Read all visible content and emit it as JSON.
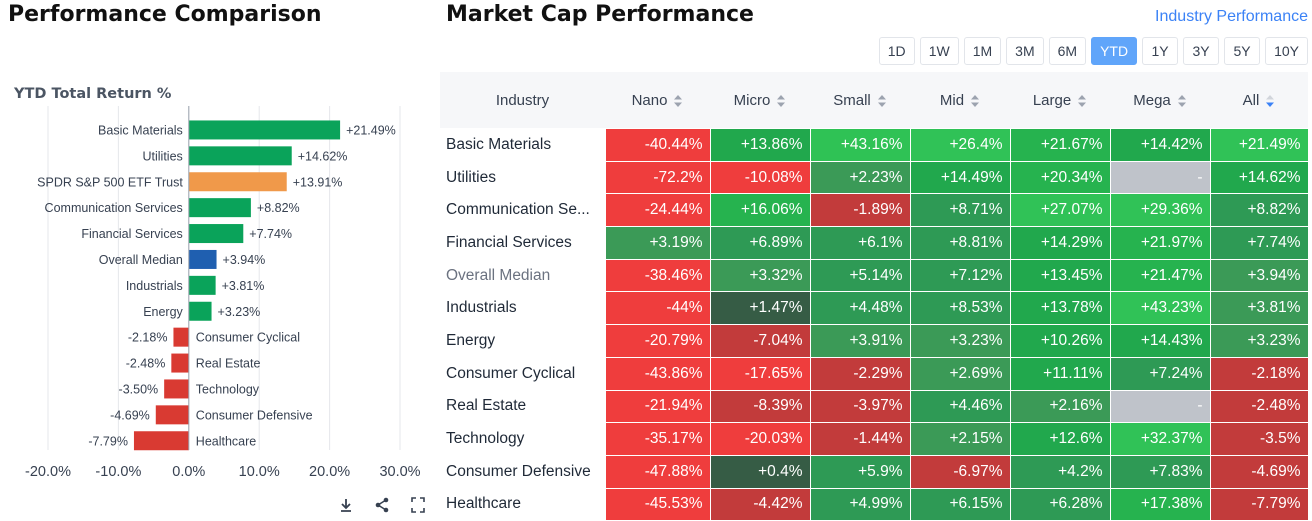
{
  "left": {
    "title": "Performance Comparison",
    "chart_subtitle": "YTD Total Return %",
    "tools": [
      "download-icon",
      "share-icon",
      "fullscreen-icon"
    ]
  },
  "chart_data": {
    "type": "bar",
    "orientation": "horizontal",
    "title": "YTD Total Return %",
    "categories": [
      "Basic Materials",
      "Utilities",
      "SPDR S&P 500 ETF Trust",
      "Communication Services",
      "Financial Services",
      "Overall Median",
      "Industrials",
      "Energy",
      "Consumer Cyclical",
      "Real Estate",
      "Technology",
      "Consumer Defensive",
      "Healthcare"
    ],
    "values": [
      21.49,
      14.62,
      13.91,
      8.82,
      7.74,
      3.94,
      3.81,
      3.23,
      -2.18,
      -2.48,
      -3.5,
      -4.69,
      -7.79
    ],
    "labels": [
      "+21.49%",
      "+14.62%",
      "+13.91%",
      "+8.82%",
      "+7.74%",
      "+3.94%",
      "+3.81%",
      "+3.23%",
      "-2.18%",
      "-2.48%",
      "-3.50%",
      "-4.69%",
      "-7.79%"
    ],
    "colors": [
      "#0aa35a",
      "#0aa35a",
      "#f0994a",
      "#0aa35a",
      "#0aa35a",
      "#1f5fb0",
      "#0aa35a",
      "#0aa35a",
      "#d93a32",
      "#d93a32",
      "#d93a32",
      "#d93a32",
      "#d93a32"
    ],
    "xlim": [
      -20,
      30
    ],
    "xticks": [
      -20,
      -10,
      0,
      10,
      20,
      30
    ],
    "xtick_labels": [
      "-20.0%",
      "-10.0%",
      "0.0%",
      "10.0%",
      "20.0%",
      "30.0%"
    ],
    "grid": true
  },
  "right": {
    "title": "Market Cap Performance",
    "link_label": "Industry Performance",
    "periods": [
      "1D",
      "1W",
      "1M",
      "3M",
      "6M",
      "YTD",
      "1Y",
      "3Y",
      "5Y",
      "10Y"
    ],
    "active_period": "YTD",
    "columns": [
      "Industry",
      "Nano",
      "Micro",
      "Small",
      "Mid",
      "Large",
      "Mega",
      "All"
    ],
    "sorted_column": "All",
    "rows": [
      {
        "industry": "Basic Materials",
        "cells": [
          {
            "text": "-40.44%",
            "bg": "#ef3d3d"
          },
          {
            "text": "+13.86%",
            "bg": "#21a84d"
          },
          {
            "text": "+43.16%",
            "bg": "#2fc255"
          },
          {
            "text": "+26.4%",
            "bg": "#30c257"
          },
          {
            "text": "+21.67%",
            "bg": "#26b34f"
          },
          {
            "text": "+14.42%",
            "bg": "#21a84d"
          },
          {
            "text": "+21.49%",
            "bg": "#30c257"
          }
        ]
      },
      {
        "industry": "Utilities",
        "cells": [
          {
            "text": "-72.2%",
            "bg": "#ef3d3d"
          },
          {
            "text": "-10.08%",
            "bg": "#ef3d3d"
          },
          {
            "text": "+2.23%",
            "bg": "#3b9a57"
          },
          {
            "text": "+14.49%",
            "bg": "#21a84d"
          },
          {
            "text": "+20.34%",
            "bg": "#26b34f"
          },
          {
            "text": "-",
            "bg": "#bfc3ca"
          },
          {
            "text": "+14.62%",
            "bg": "#21a84d"
          }
        ]
      },
      {
        "industry": "Communication Services",
        "display": "Communication Se...",
        "cells": [
          {
            "text": "-24.44%",
            "bg": "#ef3d3d"
          },
          {
            "text": "+16.06%",
            "bg": "#26b34f"
          },
          {
            "text": "-1.89%",
            "bg": "#c23b3b"
          },
          {
            "text": "+8.71%",
            "bg": "#2e9a55"
          },
          {
            "text": "+27.07%",
            "bg": "#30c257"
          },
          {
            "text": "+29.36%",
            "bg": "#30c257"
          },
          {
            "text": "+8.82%",
            "bg": "#2e9a55"
          }
        ]
      },
      {
        "industry": "Financial Services",
        "cells": [
          {
            "text": "+3.19%",
            "bg": "#3b9a57"
          },
          {
            "text": "+6.89%",
            "bg": "#2e9a55"
          },
          {
            "text": "+6.1%",
            "bg": "#2e9a55"
          },
          {
            "text": "+8.81%",
            "bg": "#2e9a55"
          },
          {
            "text": "+14.29%",
            "bg": "#21a84d"
          },
          {
            "text": "+21.97%",
            "bg": "#26b34f"
          },
          {
            "text": "+7.74%",
            "bg": "#2e9a55"
          }
        ]
      },
      {
        "industry": "Overall Median",
        "median": true,
        "cells": [
          {
            "text": "-38.46%",
            "bg": "#ef3d3d"
          },
          {
            "text": "+3.32%",
            "bg": "#3b9a57"
          },
          {
            "text": "+5.14%",
            "bg": "#2e9a55"
          },
          {
            "text": "+7.12%",
            "bg": "#2e9a55"
          },
          {
            "text": "+13.45%",
            "bg": "#21a84d"
          },
          {
            "text": "+21.47%",
            "bg": "#26b34f"
          },
          {
            "text": "+3.94%",
            "bg": "#3b9a57"
          }
        ]
      },
      {
        "industry": "Industrials",
        "cells": [
          {
            "text": "-44%",
            "bg": "#ef3d3d"
          },
          {
            "text": "+1.47%",
            "bg": "#365c45"
          },
          {
            "text": "+4.48%",
            "bg": "#2e9a55"
          },
          {
            "text": "+8.53%",
            "bg": "#2e9a55"
          },
          {
            "text": "+13.78%",
            "bg": "#21a84d"
          },
          {
            "text": "+43.23%",
            "bg": "#30c257"
          },
          {
            "text": "+3.81%",
            "bg": "#3b9a57"
          }
        ]
      },
      {
        "industry": "Energy",
        "cells": [
          {
            "text": "-20.79%",
            "bg": "#ef3d3d"
          },
          {
            "text": "-7.04%",
            "bg": "#c23b3b"
          },
          {
            "text": "+3.91%",
            "bg": "#3b9a57"
          },
          {
            "text": "+3.23%",
            "bg": "#3b9a57"
          },
          {
            "text": "+10.26%",
            "bg": "#21a84d"
          },
          {
            "text": "+14.43%",
            "bg": "#21a84d"
          },
          {
            "text": "+3.23%",
            "bg": "#3b9a57"
          }
        ]
      },
      {
        "industry": "Consumer Cyclical",
        "cells": [
          {
            "text": "-43.86%",
            "bg": "#ef3d3d"
          },
          {
            "text": "-17.65%",
            "bg": "#ef3d3d"
          },
          {
            "text": "-2.29%",
            "bg": "#c23b3b"
          },
          {
            "text": "+2.69%",
            "bg": "#3b9a57"
          },
          {
            "text": "+11.11%",
            "bg": "#21a84d"
          },
          {
            "text": "+7.24%",
            "bg": "#2e9a55"
          },
          {
            "text": "-2.18%",
            "bg": "#c23b3b"
          }
        ]
      },
      {
        "industry": "Real Estate",
        "cells": [
          {
            "text": "-21.94%",
            "bg": "#ef3d3d"
          },
          {
            "text": "-8.39%",
            "bg": "#c23b3b"
          },
          {
            "text": "-3.97%",
            "bg": "#c23b3b"
          },
          {
            "text": "+4.46%",
            "bg": "#2e9a55"
          },
          {
            "text": "+2.16%",
            "bg": "#3b9a57"
          },
          {
            "text": "-",
            "bg": "#bfc3ca"
          },
          {
            "text": "-2.48%",
            "bg": "#c23b3b"
          }
        ]
      },
      {
        "industry": "Technology",
        "cells": [
          {
            "text": "-35.17%",
            "bg": "#ef3d3d"
          },
          {
            "text": "-20.03%",
            "bg": "#ef3d3d"
          },
          {
            "text": "-1.44%",
            "bg": "#c23b3b"
          },
          {
            "text": "+2.15%",
            "bg": "#3b9a57"
          },
          {
            "text": "+12.6%",
            "bg": "#21a84d"
          },
          {
            "text": "+32.37%",
            "bg": "#30c257"
          },
          {
            "text": "-3.5%",
            "bg": "#c23b3b"
          }
        ]
      },
      {
        "industry": "Consumer Defensive",
        "cells": [
          {
            "text": "-47.88%",
            "bg": "#ef3d3d"
          },
          {
            "text": "+0.4%",
            "bg": "#365c45"
          },
          {
            "text": "+5.9%",
            "bg": "#2e9a55"
          },
          {
            "text": "-6.97%",
            "bg": "#c23b3b"
          },
          {
            "text": "+4.2%",
            "bg": "#2e9a55"
          },
          {
            "text": "+7.83%",
            "bg": "#2e9a55"
          },
          {
            "text": "-4.69%",
            "bg": "#c23b3b"
          }
        ]
      },
      {
        "industry": "Healthcare",
        "cells": [
          {
            "text": "-45.53%",
            "bg": "#ef3d3d"
          },
          {
            "text": "-4.42%",
            "bg": "#c23b3b"
          },
          {
            "text": "+4.99%",
            "bg": "#2e9a55"
          },
          {
            "text": "+6.15%",
            "bg": "#2e9a55"
          },
          {
            "text": "+6.28%",
            "bg": "#2e9a55"
          },
          {
            "text": "+17.38%",
            "bg": "#26b34f"
          },
          {
            "text": "-7.79%",
            "bg": "#c23b3b"
          }
        ]
      }
    ]
  }
}
